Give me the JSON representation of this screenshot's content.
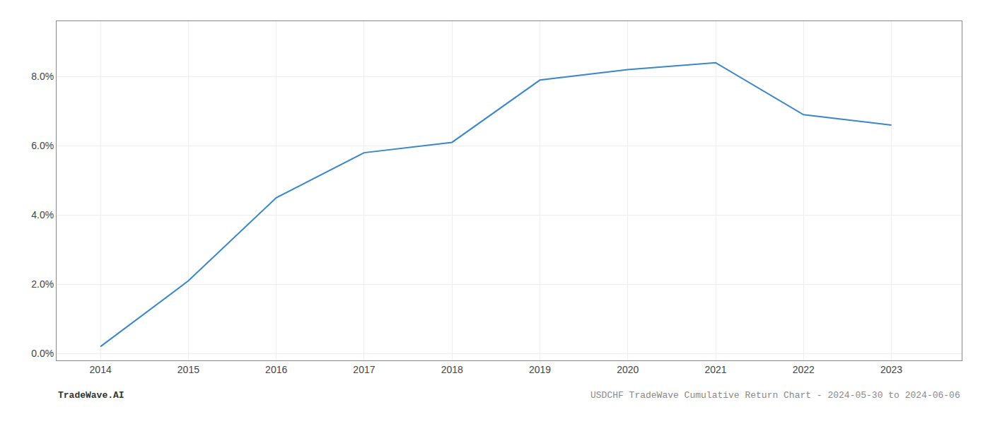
{
  "chart_data": {
    "type": "line",
    "x": [
      2014,
      2015,
      2016,
      2017,
      2018,
      2019,
      2020,
      2021,
      2022,
      2023
    ],
    "values": [
      0.002,
      0.021,
      0.045,
      0.058,
      0.061,
      0.079,
      0.082,
      0.084,
      0.069,
      0.066
    ],
    "color": "#3a86c8",
    "xlim": [
      2013.5,
      2023.8
    ],
    "xticks": [
      2014,
      2015,
      2016,
      2017,
      2018,
      2019,
      2020,
      2021,
      2022,
      2023
    ],
    "ylim": [
      -0.002,
      0.096
    ],
    "yticks": [
      {
        "value": 0.0,
        "label": "0.0%"
      },
      {
        "value": 0.02,
        "label": "2.0%"
      },
      {
        "value": 0.04,
        "label": "4.0%"
      },
      {
        "value": 0.06,
        "label": "6.0%"
      },
      {
        "value": 0.08,
        "label": "8.0%"
      }
    ],
    "grid": true,
    "annotations": [
      "TradeWave.AI",
      "USDCHF TradeWave Cumulative Return Chart - 2024-05-30 to 2024-06-06"
    ]
  }
}
